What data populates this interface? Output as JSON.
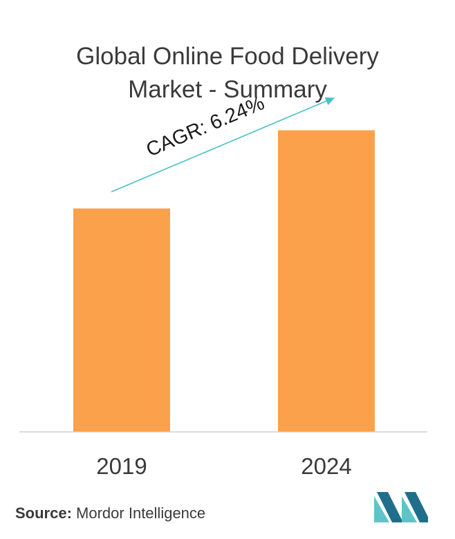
{
  "title_line1": "Global Online Food Delivery",
  "title_line2": "Market - Summary",
  "chart_data": {
    "type": "bar",
    "categories": [
      "2019",
      "2024"
    ],
    "values": [
      100,
      135
    ],
    "ylim": [
      0,
      150
    ],
    "bar_color": "#fba04b",
    "annotation": "CAGR: 6.24%",
    "annotation_color": "#44c1c9",
    "axis_color": "#cfcfcf",
    "grid": false
  },
  "source_label": "Source:",
  "source_text": "Mordor Intelligence",
  "logo": {
    "icon": "mordor-intelligence-logo",
    "color_dark": "#1f6f8b",
    "color_light": "#5fc4c8"
  }
}
